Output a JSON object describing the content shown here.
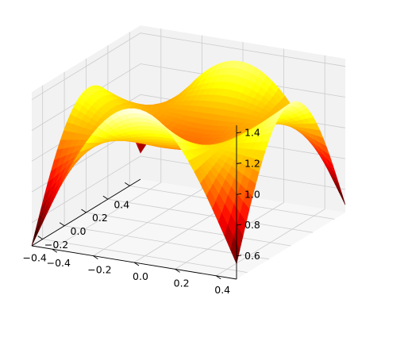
{
  "chart_data": {
    "type": "surface",
    "title": "",
    "xlabel": "",
    "ylabel": "",
    "zlabel": "",
    "colormap": "hot",
    "grid": true,
    "pane_color": "#f2f2f2",
    "grid_color": "#cccccc",
    "xlim": [
      -0.5,
      0.5
    ],
    "ylim": [
      -0.5,
      0.5
    ],
    "zlim": [
      0.45,
      1.45
    ],
    "x_ticks": [
      0.4,
      0.2,
      0.0,
      -0.2,
      -0.4
    ],
    "x_tick_labels": [
      "0.4",
      "0.2",
      "0.0",
      "−0.2",
      "−0.4"
    ],
    "y_ticks": [
      -0.4,
      -0.2,
      0.0,
      0.2,
      0.4
    ],
    "y_tick_labels": [
      "−0.4",
      "−0.2",
      "0.0",
      "0.2",
      "0.4"
    ],
    "z_ticks": [
      0.6,
      0.8,
      1.0,
      1.2,
      1.4
    ],
    "z_tick_labels": [
      "0.6",
      "0.8",
      "1.0",
      "1.2",
      "1.4"
    ],
    "corner_values": {
      "x_min_y_min": 0.45,
      "x_max_y_min": 0.62,
      "x_min_y_max": 0.55,
      "x_max_y_max": 0.5
    },
    "edge_midpoint_peaks": {
      "x_min_y_mid": 1.45,
      "x_max_y_mid": 1.32,
      "x_mid_y_min": 1.25,
      "x_mid_y_max": 1.38
    },
    "center_value": 0.98,
    "description": ""
  }
}
